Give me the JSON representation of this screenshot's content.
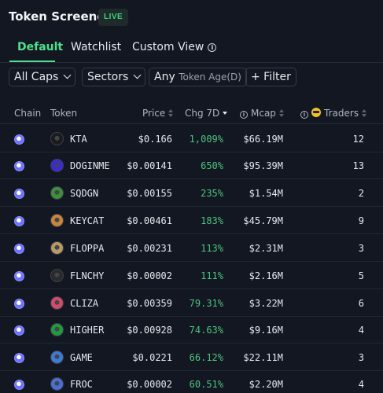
{
  "header": {
    "title": "Token Screener",
    "badge": "LIVE"
  },
  "tabs": [
    {
      "label": "Default"
    },
    {
      "label": "Watchlist"
    },
    {
      "label": "Custom View"
    }
  ],
  "filters": {
    "caps": "All Caps",
    "sectors": "Sectors",
    "age_prefix": "Any",
    "age_label": "Token Age(D)",
    "add_filter": "+ Filter"
  },
  "columns": {
    "chain": "Chain",
    "token": "Token",
    "price": "Price",
    "chg": "Chg 7D",
    "mcap": "Mcap",
    "traders": "Traders"
  },
  "rows": [
    {
      "symbol": "KTA",
      "price": "$0.166",
      "chg": "1,009%",
      "mcap": "$66.19M",
      "traders": "12",
      "avatar_color": "#1b1b1b"
    },
    {
      "symbol": "DOGINME",
      "price": "$0.00141",
      "chg": "650%",
      "mcap": "$95.39M",
      "traders": "13",
      "avatar_color": "#3b2ad6"
    },
    {
      "symbol": "SQDGN",
      "price": "$0.00155",
      "chg": "235%",
      "mcap": "$1.54M",
      "traders": "2",
      "avatar_color": "#3f8f3a"
    },
    {
      "symbol": "KEYCAT",
      "price": "$0.00461",
      "chg": "183%",
      "mcap": "$45.79M",
      "traders": "9",
      "avatar_color": "#c9853a"
    },
    {
      "symbol": "FLOPPA",
      "price": "$0.00231",
      "chg": "113%",
      "mcap": "$2.31M",
      "traders": "3",
      "avatar_color": "#b89a63"
    },
    {
      "symbol": "FLNCHY",
      "price": "$0.00002",
      "chg": "111%",
      "mcap": "$2.16M",
      "traders": "5",
      "avatar_color": "#2a2a2a"
    },
    {
      "symbol": "CLIZA",
      "price": "$0.00359",
      "chg": "79.31%",
      "mcap": "$3.22M",
      "traders": "6",
      "avatar_color": "#d44a6a"
    },
    {
      "symbol": "HIGHER",
      "price": "$0.00928",
      "chg": "74.63%",
      "mcap": "$9.16M",
      "traders": "4",
      "avatar_color": "#1f9a3c"
    },
    {
      "symbol": "GAME",
      "price": "$0.0221",
      "chg": "66.12%",
      "mcap": "$22.11M",
      "traders": "3",
      "avatar_color": "#3f7bd4"
    },
    {
      "symbol": "FROC",
      "price": "$0.00002",
      "chg": "60.51%",
      "mcap": "$2.20M",
      "traders": "4",
      "avatar_color": "#4a6fd4"
    }
  ]
}
